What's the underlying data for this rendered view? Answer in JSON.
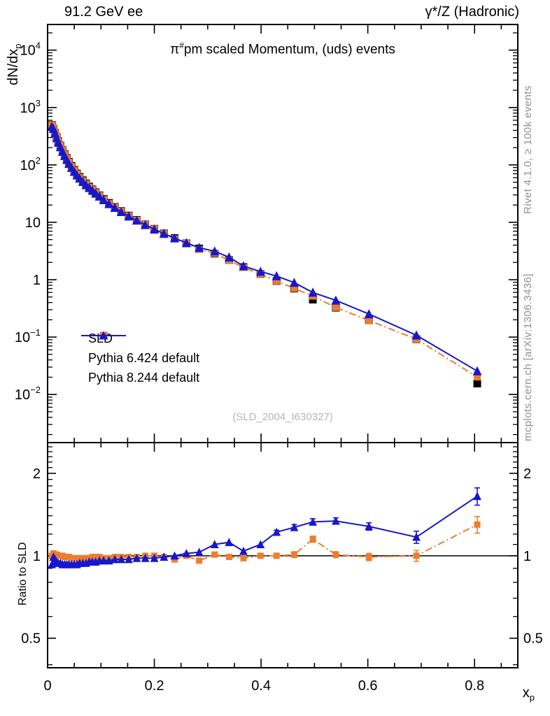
{
  "header": {
    "left": "91.2 GeV ee",
    "right": "γ*/Z (Hadronic)"
  },
  "display_title": {
    "pi": "π",
    "sup": "#",
    "rest": "pm scaled Momentum, (uds) events"
  },
  "watermark": "(SLD_2004_I630327)",
  "side_text": {
    "top": "Rivet 4.1.0, ≥ 100k events",
    "bottom": "mcplots.cern.ch [arXiv:1306.3436]"
  },
  "axes": {
    "ylabel_main": {
      "text": "dN/dx",
      "sub": "p"
    },
    "ratio_label": "Ratio to SLD",
    "xlabel": {
      "text": "x",
      "sub": "p"
    },
    "x_ticks": [
      {
        "v": 0,
        "label": "0"
      },
      {
        "v": 0.2,
        "label": "0.2"
      },
      {
        "v": 0.4,
        "label": "0.4"
      },
      {
        "v": 0.6,
        "label": "0.6"
      },
      {
        "v": 0.8,
        "label": "0.8"
      }
    ],
    "x_minor_step": 0.05,
    "y_ticks": [
      {
        "v": 10000,
        "base": "10",
        "exp": "4"
      },
      {
        "v": 1000,
        "base": "10",
        "exp": "3"
      },
      {
        "v": 100,
        "base": "10",
        "exp": "2"
      },
      {
        "v": 10,
        "base": "10",
        "exp": ""
      },
      {
        "v": 1,
        "base": "1",
        "exp": ""
      },
      {
        "v": 0.1,
        "base": "10",
        "exp": "−1"
      },
      {
        "v": 0.01,
        "base": "10",
        "exp": "−2"
      }
    ],
    "ratio_ticks": [
      {
        "v": 2,
        "label": "2"
      },
      {
        "v": 1,
        "label": "1"
      },
      {
        "v": 0.5,
        "label": "0.5"
      }
    ],
    "ratio_minor": [
      0.4,
      0.6,
      0.7,
      0.8,
      0.9,
      1.1,
      1.2,
      1.3,
      1.4,
      1.5,
      1.6,
      1.7,
      1.8,
      1.9,
      2.1,
      2.2,
      2.3,
      2.4,
      2.5
    ]
  },
  "chart_data": {
    "type": "line",
    "title": "π#pm scaled Momentum, (uds) events",
    "xlabel": "x_p",
    "ylabel": "dN/dx_p",
    "ratio_ylabel": "Ratio to SLD",
    "xlim": [
      0,
      0.881
    ],
    "ylim": [
      0.00145,
      28000
    ],
    "ratio_ylim": [
      0.39,
      2.59
    ],
    "x_scale": "linear",
    "y_scale": "log",
    "ratio_scale": "log",
    "grid": false,
    "legend_position": "lower-left",
    "x": [
      0.008,
      0.011,
      0.014,
      0.017,
      0.02,
      0.024,
      0.028,
      0.032,
      0.036,
      0.04,
      0.045,
      0.05,
      0.055,
      0.06,
      0.066,
      0.072,
      0.078,
      0.084,
      0.09,
      0.097,
      0.105,
      0.115,
      0.126,
      0.138,
      0.152,
      0.167,
      0.183,
      0.2,
      0.218,
      0.238,
      0.26,
      0.284,
      0.313,
      0.34,
      0.367,
      0.399,
      0.429,
      0.462,
      0.497,
      0.54,
      0.602,
      0.691,
      0.805
    ],
    "series": [
      {
        "name": "SLD",
        "color": "#000000",
        "marker": "square",
        "marker_size": 11,
        "line": "none",
        "values": [
          500,
          430,
          365,
          310,
          262,
          218,
          183,
          155,
          132,
          113,
          96,
          82,
          71,
          62,
          54,
          47.5,
          42,
          37.5,
          33.5,
          29.5,
          25.5,
          21.8,
          18.5,
          15.7,
          13.1,
          11.0,
          9.2,
          7.7,
          6.4,
          5.3,
          4.3,
          3.5,
          2.85,
          2.2,
          1.66,
          1.26,
          0.95,
          0.7,
          0.45,
          0.325,
          0.197,
          0.092,
          0.0155
        ]
      },
      {
        "name": "Pythia 6.424 default",
        "color": "#ee7d2e",
        "marker": "square",
        "marker_size": 10,
        "line": "dashdot",
        "ratio": [
          1.0,
          1.02,
          1.01,
          1.01,
          1.0,
          1.0,
          1.0,
          0.99,
          0.99,
          0.99,
          0.98,
          0.98,
          0.98,
          0.98,
          0.98,
          0.98,
          0.98,
          0.99,
          0.99,
          0.99,
          0.98,
          0.98,
          0.99,
          0.99,
          0.99,
          0.99,
          1.0,
          1.0,
          0.99,
          0.97,
          1.0,
          0.96,
          1.01,
          0.99,
          0.98,
          1.0,
          1.0,
          1.01,
          1.15,
          1.01,
          0.99,
          1.0,
          1.3
        ],
        "ratio_err": [
          0,
          0,
          0,
          0,
          0,
          0,
          0,
          0,
          0,
          0,
          0,
          0,
          0,
          0,
          0,
          0,
          0,
          0,
          0,
          0,
          0,
          0,
          0,
          0,
          0,
          0,
          0,
          0,
          0,
          0,
          0,
          0,
          0,
          0,
          0,
          0,
          0.02,
          0.025,
          0.03,
          0.025,
          0.03,
          0.045,
          0.09
        ]
      },
      {
        "name": "Pythia 8.244 default",
        "color": "#1717cc",
        "marker": "triangle",
        "marker_size": 12,
        "line": "solid",
        "ratio": [
          0.93,
          0.99,
          0.97,
          0.95,
          0.94,
          0.94,
          0.93,
          0.93,
          0.93,
          0.93,
          0.93,
          0.93,
          0.93,
          0.94,
          0.94,
          0.94,
          0.95,
          0.95,
          0.95,
          0.96,
          0.96,
          0.96,
          0.97,
          0.97,
          0.97,
          0.98,
          0.98,
          0.98,
          0.99,
          1.0,
          1.02,
          1.03,
          1.1,
          1.12,
          1.04,
          1.1,
          1.22,
          1.27,
          1.33,
          1.34,
          1.28,
          1.17,
          1.65
        ],
        "ratio_err": [
          0,
          0,
          0,
          0,
          0,
          0,
          0,
          0,
          0,
          0,
          0,
          0,
          0,
          0,
          0,
          0,
          0,
          0,
          0,
          0,
          0,
          0,
          0,
          0,
          0,
          0,
          0,
          0,
          0,
          0,
          0,
          0,
          0,
          0,
          0,
          0,
          0.02,
          0.03,
          0.035,
          0.035,
          0.04,
          0.06,
          0.12
        ]
      }
    ]
  }
}
